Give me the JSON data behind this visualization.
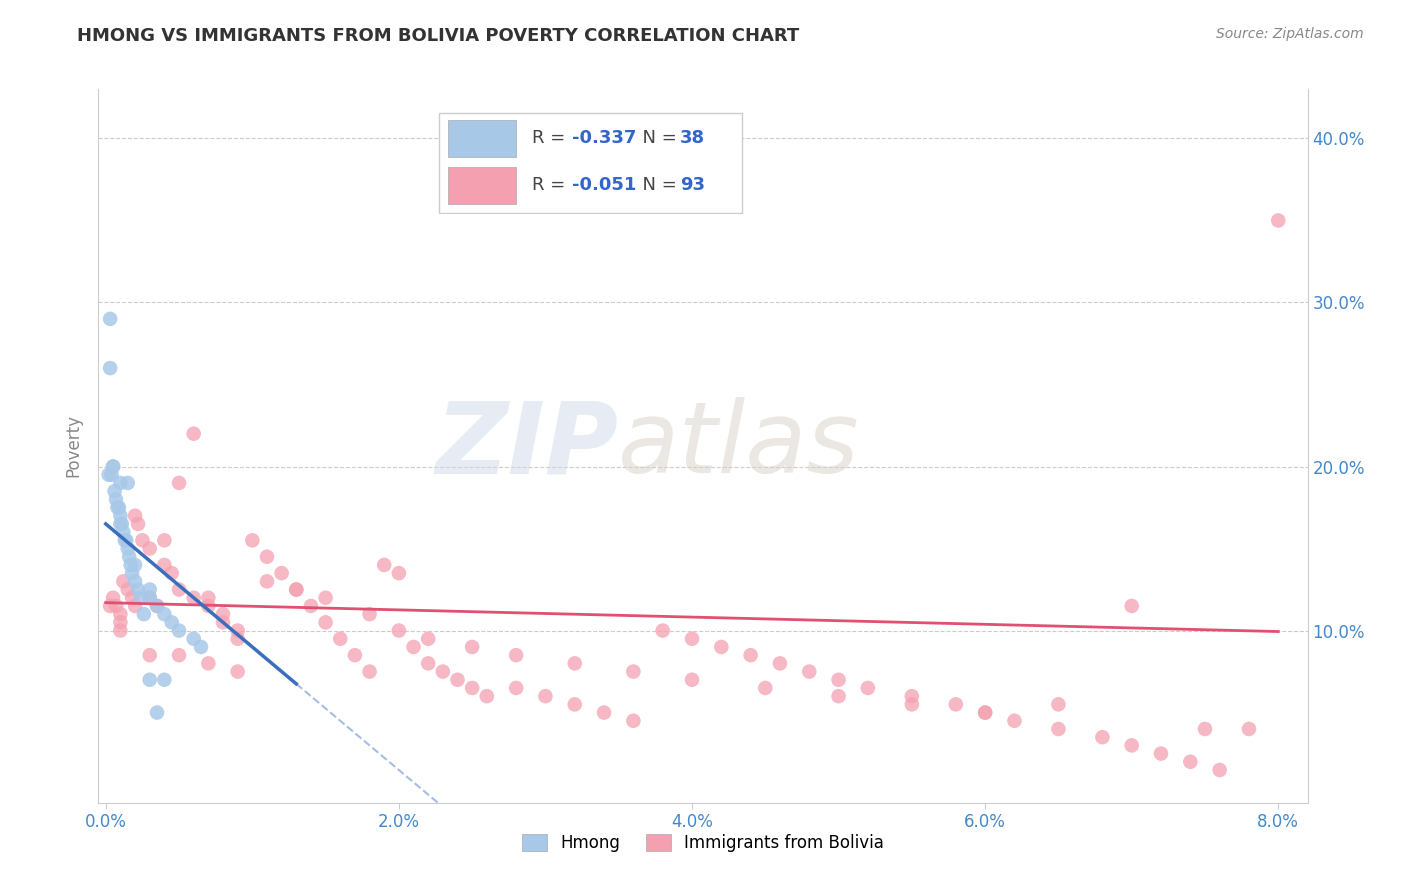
{
  "title": "HMONG VS IMMIGRANTS FROM BOLIVIA POVERTY CORRELATION CHART",
  "source": "Source: ZipAtlas.com",
  "ylabel": "Poverty",
  "xlim": [
    -0.0005,
    0.082
  ],
  "ylim": [
    -0.005,
    0.43
  ],
  "ytick_vals": [
    0.1,
    0.2,
    0.3,
    0.4
  ],
  "ytick_labels": [
    "10.0%",
    "20.0%",
    "30.0%",
    "40.0%"
  ],
  "xtick_vals": [
    0.0,
    0.02,
    0.04,
    0.06,
    0.08
  ],
  "xtick_labels": [
    "0.0%",
    "2.0%",
    "4.0%",
    "6.0%",
    "8.0%"
  ],
  "hmong_R": "-0.337",
  "hmong_N": "38",
  "bolivia_R": "-0.051",
  "bolivia_N": "93",
  "hmong_color": "#a8c8e8",
  "bolivia_color": "#f4a0b0",
  "hmong_line_color": "#3a6fbe",
  "bolivia_line_color": "#e05070",
  "watermark_zip": "ZIP",
  "watermark_atlas": "atlas",
  "hmong_x": [
    0.0002,
    0.0003,
    0.0004,
    0.0005,
    0.0006,
    0.0007,
    0.0008,
    0.0009,
    0.001,
    0.001,
    0.0011,
    0.0012,
    0.0013,
    0.0014,
    0.0015,
    0.0016,
    0.0017,
    0.0018,
    0.002,
    0.0022,
    0.0024,
    0.0026,
    0.003,
    0.003,
    0.0035,
    0.004,
    0.0045,
    0.005,
    0.006,
    0.0065,
    0.0003,
    0.0005,
    0.001,
    0.0015,
    0.002,
    0.003,
    0.004,
    0.0035
  ],
  "hmong_y": [
    0.195,
    0.26,
    0.195,
    0.2,
    0.185,
    0.18,
    0.175,
    0.175,
    0.17,
    0.165,
    0.165,
    0.16,
    0.155,
    0.155,
    0.15,
    0.145,
    0.14,
    0.135,
    0.13,
    0.125,
    0.12,
    0.11,
    0.125,
    0.12,
    0.115,
    0.11,
    0.105,
    0.1,
    0.095,
    0.09,
    0.29,
    0.2,
    0.19,
    0.19,
    0.14,
    0.07,
    0.07,
    0.05
  ],
  "bolivia_x": [
    0.0003,
    0.0005,
    0.0007,
    0.001,
    0.001,
    0.001,
    0.0012,
    0.0015,
    0.0018,
    0.002,
    0.002,
    0.0022,
    0.0025,
    0.003,
    0.003,
    0.0035,
    0.004,
    0.004,
    0.0045,
    0.005,
    0.005,
    0.006,
    0.006,
    0.007,
    0.007,
    0.008,
    0.008,
    0.009,
    0.009,
    0.01,
    0.011,
    0.012,
    0.013,
    0.014,
    0.015,
    0.016,
    0.017,
    0.018,
    0.019,
    0.02,
    0.021,
    0.022,
    0.023,
    0.024,
    0.025,
    0.026,
    0.028,
    0.03,
    0.032,
    0.034,
    0.036,
    0.038,
    0.04,
    0.042,
    0.044,
    0.046,
    0.048,
    0.05,
    0.052,
    0.055,
    0.058,
    0.06,
    0.062,
    0.065,
    0.068,
    0.07,
    0.072,
    0.074,
    0.076,
    0.078,
    0.003,
    0.005,
    0.007,
    0.009,
    0.011,
    0.013,
    0.015,
    0.018,
    0.02,
    0.022,
    0.025,
    0.028,
    0.032,
    0.036,
    0.04,
    0.045,
    0.05,
    0.055,
    0.06,
    0.065,
    0.07,
    0.075,
    0.08
  ],
  "bolivia_y": [
    0.115,
    0.12,
    0.115,
    0.11,
    0.105,
    0.1,
    0.13,
    0.125,
    0.12,
    0.115,
    0.17,
    0.165,
    0.155,
    0.15,
    0.12,
    0.115,
    0.155,
    0.14,
    0.135,
    0.19,
    0.125,
    0.22,
    0.12,
    0.12,
    0.115,
    0.11,
    0.105,
    0.1,
    0.095,
    0.155,
    0.145,
    0.135,
    0.125,
    0.115,
    0.105,
    0.095,
    0.085,
    0.075,
    0.14,
    0.135,
    0.09,
    0.08,
    0.075,
    0.07,
    0.065,
    0.06,
    0.065,
    0.06,
    0.055,
    0.05,
    0.045,
    0.1,
    0.095,
    0.09,
    0.085,
    0.08,
    0.075,
    0.07,
    0.065,
    0.06,
    0.055,
    0.05,
    0.045,
    0.04,
    0.035,
    0.03,
    0.025,
    0.02,
    0.015,
    0.04,
    0.085,
    0.085,
    0.08,
    0.075,
    0.13,
    0.125,
    0.12,
    0.11,
    0.1,
    0.095,
    0.09,
    0.085,
    0.08,
    0.075,
    0.07,
    0.065,
    0.06,
    0.055,
    0.05,
    0.055,
    0.115,
    0.04,
    0.35
  ]
}
